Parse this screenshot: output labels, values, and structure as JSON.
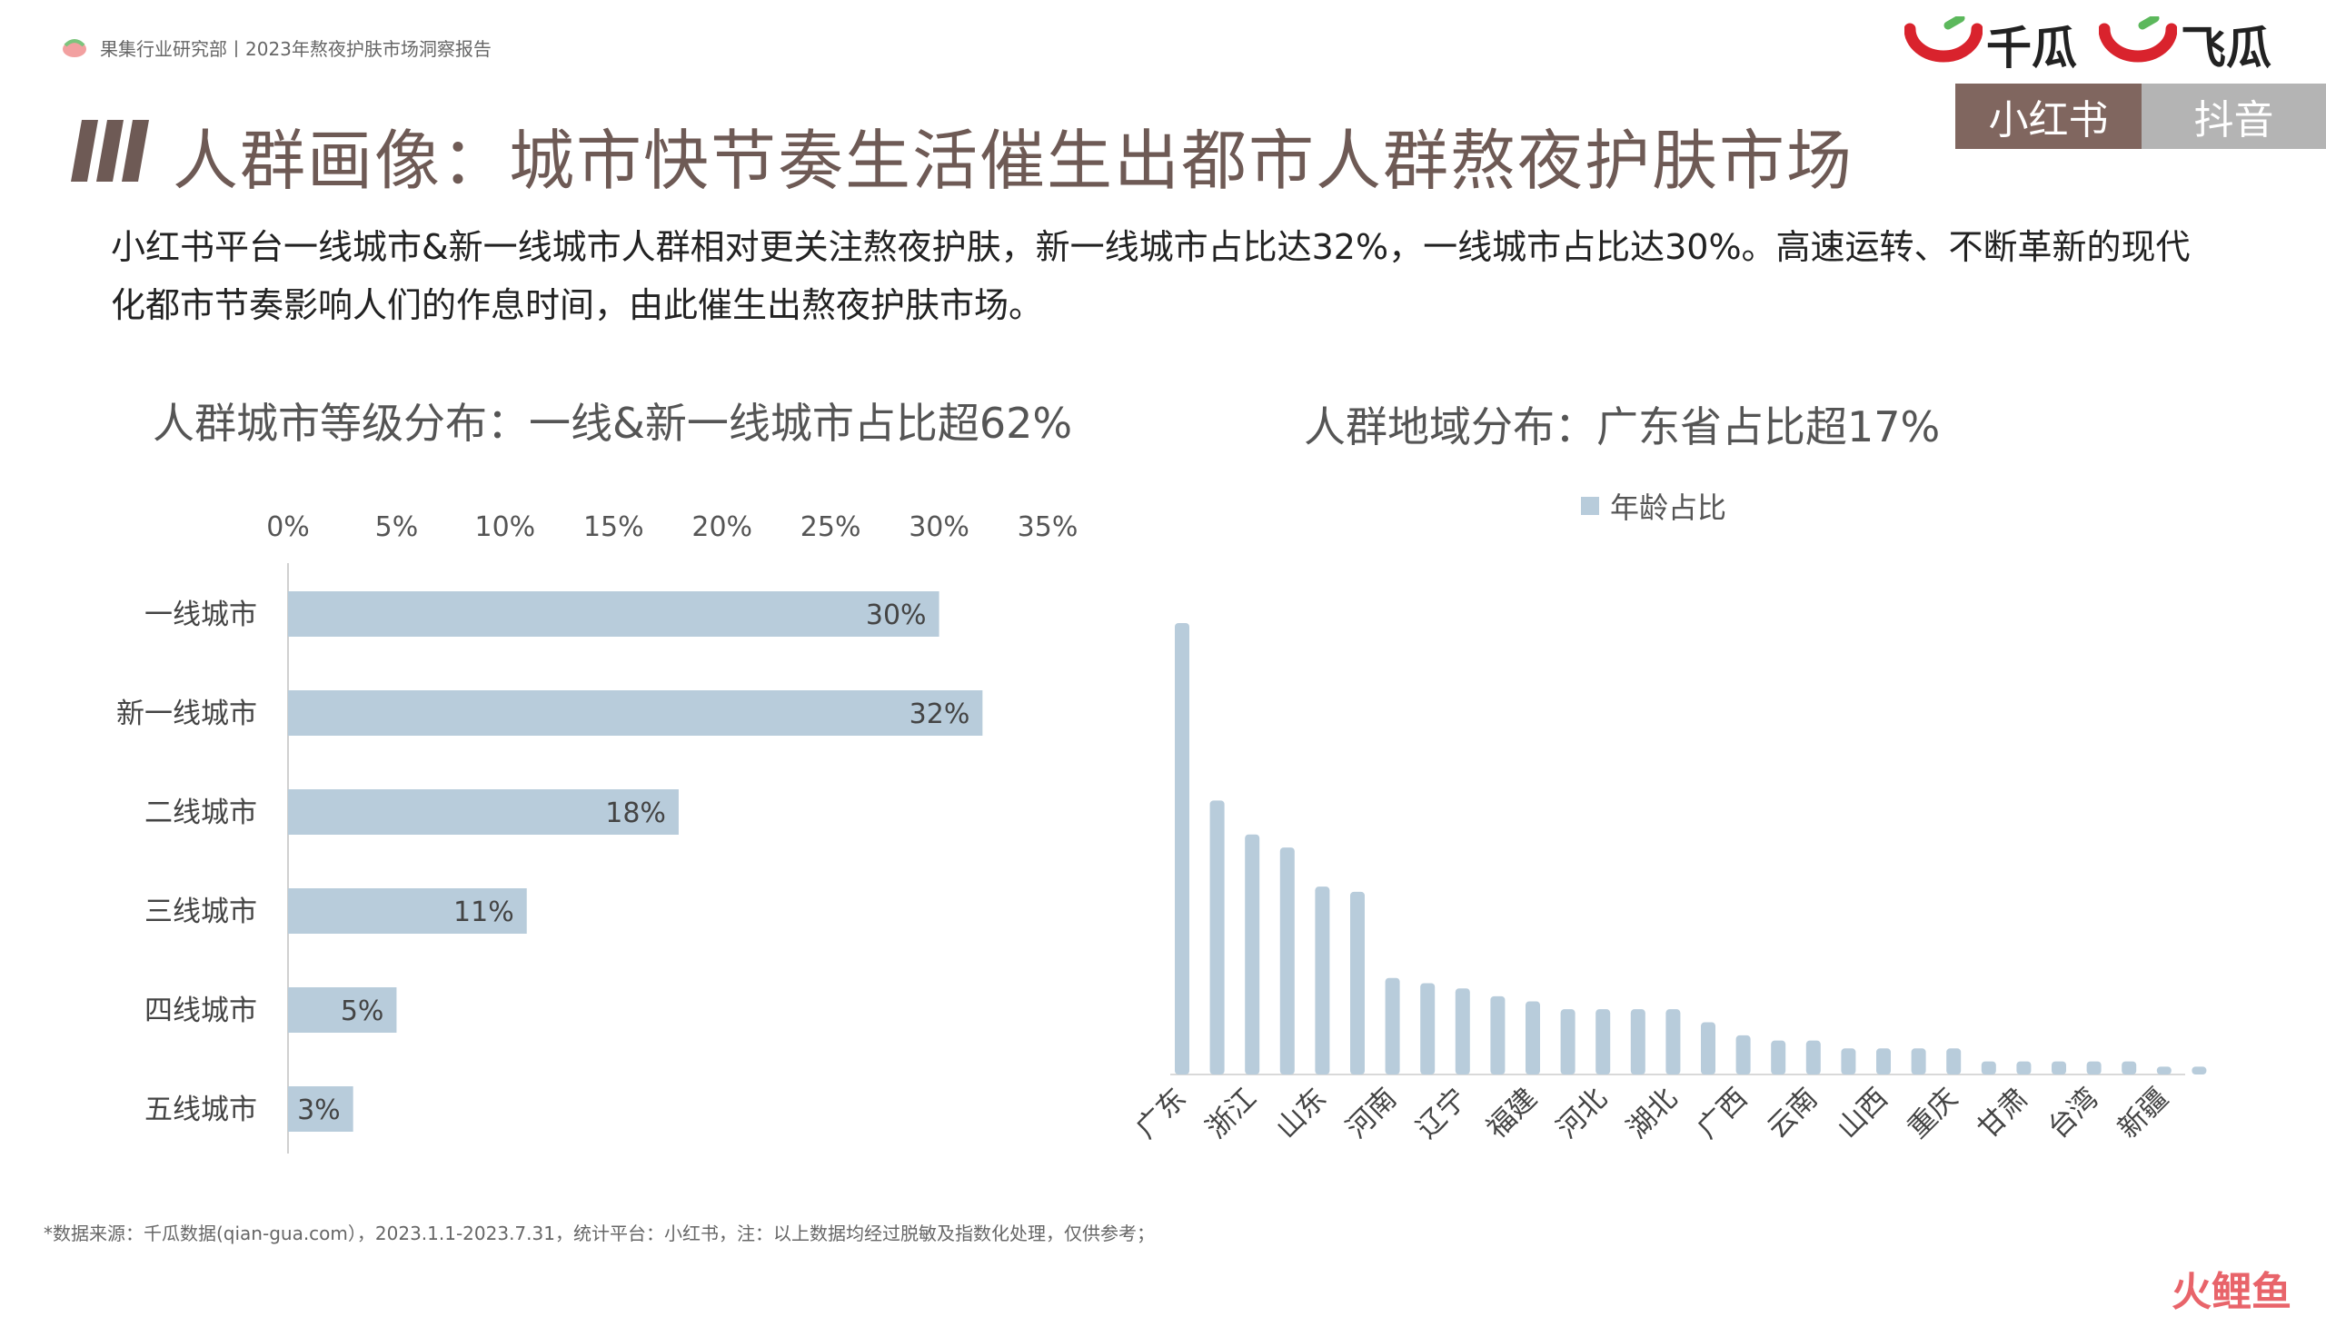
{
  "header": {
    "text": "果集行业研究部丨2023年熬夜护肤市场洞察报告",
    "brands": [
      "千瓜",
      "飞瓜"
    ],
    "brand_color": "#d9232d",
    "brand_green": "#5cb85c"
  },
  "title": "人群画像：城市快节奏生活催生出都市人群熬夜护肤市场",
  "tabs": [
    "小红书",
    "抖音"
  ],
  "description": "小红书平台一线城市&新一线城市人群相对更关注熬夜护肤，新一线城市占比达32%，一线城市占比达30%。高速运转、不断革新的现代化都市节奏影响人们的作息时间，由此催生出熬夜护肤市场。",
  "chart_data": [
    {
      "type": "bar",
      "orientation": "horizontal",
      "title": "人群城市等级分布：一线&新一线城市占比超62%",
      "categories": [
        "一线城市",
        "新一线城市",
        "二线城市",
        "三线城市",
        "四线城市",
        "五线城市"
      ],
      "values": [
        30,
        32,
        18,
        11,
        5,
        3
      ],
      "value_labels": [
        "30%",
        "32%",
        "18%",
        "11%",
        "5%",
        "3%"
      ],
      "xlim": [
        0,
        35
      ],
      "ticks": [
        "0%",
        "5%",
        "10%",
        "15%",
        "20%",
        "25%",
        "30%",
        "35%"
      ],
      "axis_position": "top",
      "grid": false,
      "color": "#b8ccdb"
    },
    {
      "type": "bar",
      "title": "人群地域分布：广东省占比超17%",
      "legend": "年龄占比",
      "legend_position": "top",
      "categories": [
        "广东",
        "",
        "浙江",
        "",
        "山东",
        "",
        "河南",
        "",
        "辽宁",
        "",
        "福建",
        "",
        "河北",
        "",
        "湖北",
        "",
        "广西",
        "",
        "云南",
        "",
        "山西",
        "",
        "重庆",
        "",
        "甘肃",
        "",
        "台湾",
        "",
        "新疆",
        ""
      ],
      "values": [
        17.3,
        10.5,
        9.2,
        8.7,
        7.2,
        7.0,
        3.7,
        3.5,
        3.3,
        3.0,
        2.8,
        2.5,
        2.5,
        2.5,
        2.5,
        2.0,
        1.5,
        1.3,
        1.3,
        1.0,
        1.0,
        1.0,
        1.0,
        0.5,
        0.5,
        0.5,
        0.5,
        0.5,
        0.3,
        0.3
      ],
      "ylim": [
        0,
        17.3
      ],
      "grid": false,
      "color": "#b8ccdb"
    }
  ],
  "note": "*数据来源：千瓜数据(qian-gua.com），2023.1.1-2023.7.31，统计平台：小红书，注：以上数据均经过脱敏及指数化处理，仅供参考；",
  "watermark": "火鲤鱼"
}
